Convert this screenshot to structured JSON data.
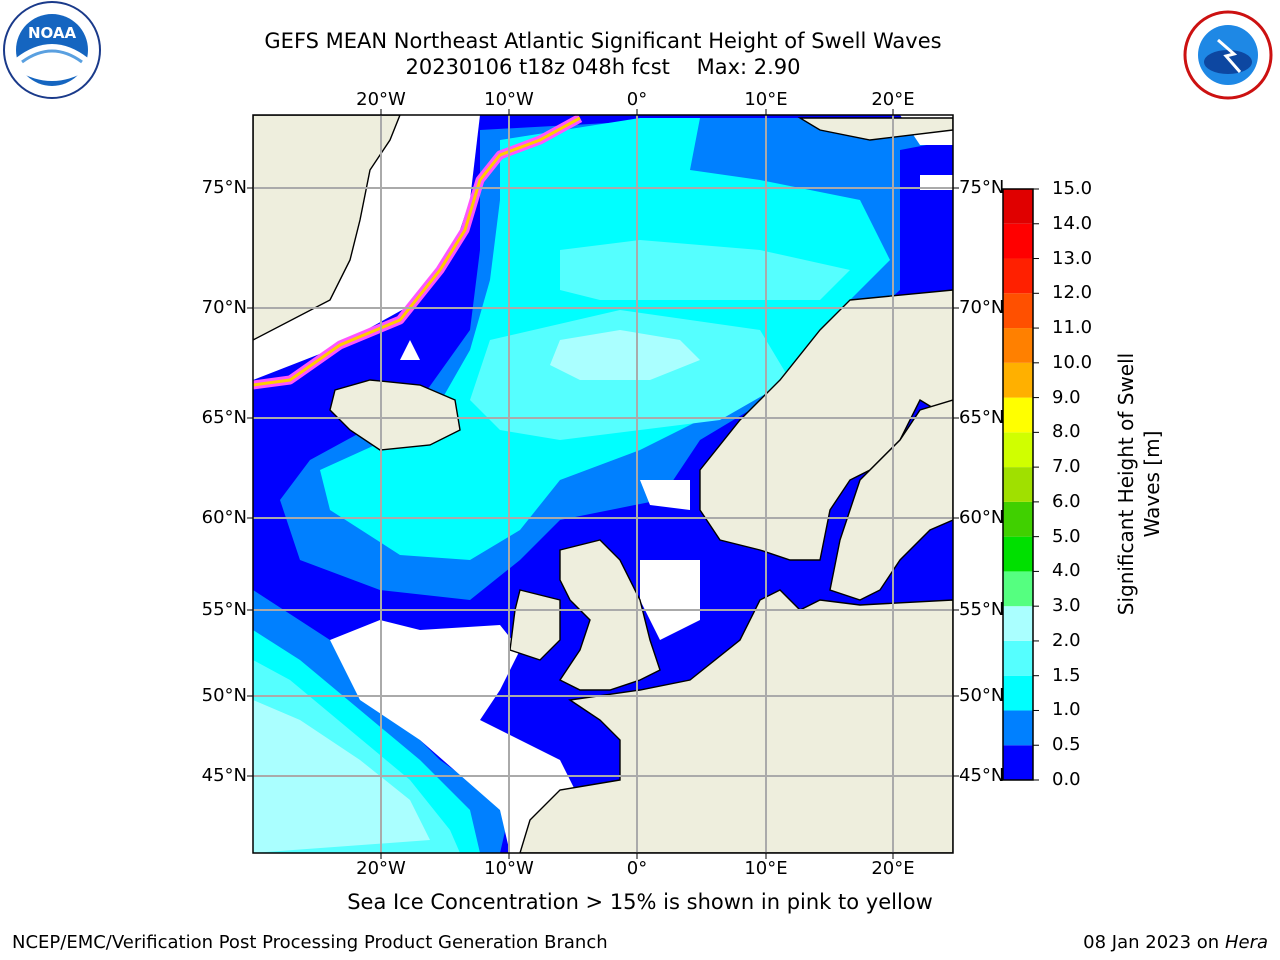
{
  "header": {
    "title_line1": "GEFS MEAN Northeast Atlantic Significant Height of Swell Waves",
    "title_line2": "20230106 t18z 048h fcst    Max: 2.90"
  },
  "logos": {
    "left": "NOAA",
    "right": "NATIONAL WEATHER SERVICE"
  },
  "map": {
    "lon_ticks": [
      "20°W",
      "10°W",
      "0°",
      "10°E",
      "20°E"
    ],
    "lat_ticks": [
      "75°N",
      "70°N",
      "65°N",
      "60°N",
      "55°N",
      "50°N",
      "45°N"
    ],
    "colors": {
      "land": "#eeeedd",
      "no_data": "#ffffff",
      "ice": "#ff55ff"
    }
  },
  "colorbar": {
    "label_line1": "Significant Height of Swell",
    "label_line2": "Waves [m]",
    "ticks": [
      "0.0",
      "0.5",
      "1.0",
      "1.5",
      "2.0",
      "3.0",
      "4.0",
      "5.0",
      "6.0",
      "7.0",
      "8.0",
      "9.0",
      "10.0",
      "11.0",
      "12.0",
      "13.0",
      "14.0",
      "15.0"
    ],
    "colors": [
      "#0000ff",
      "#0080ff",
      "#00ffff",
      "#55ffff",
      "#aaffff",
      "#55ff80",
      "#00e000",
      "#40d000",
      "#a0e000",
      "#d0ff00",
      "#ffff00",
      "#ffb000",
      "#ff8000",
      "#ff5000",
      "#ff2000",
      "#ff0000",
      "#e00000"
    ]
  },
  "note": "Sea Ice Concentration > 15% is shown in pink to yellow",
  "footer": {
    "left": "NCEP/EMC/Verification Post Processing Product Generation Branch",
    "right_date": "08 Jan 2023 on",
    "right_host": "Hera"
  }
}
